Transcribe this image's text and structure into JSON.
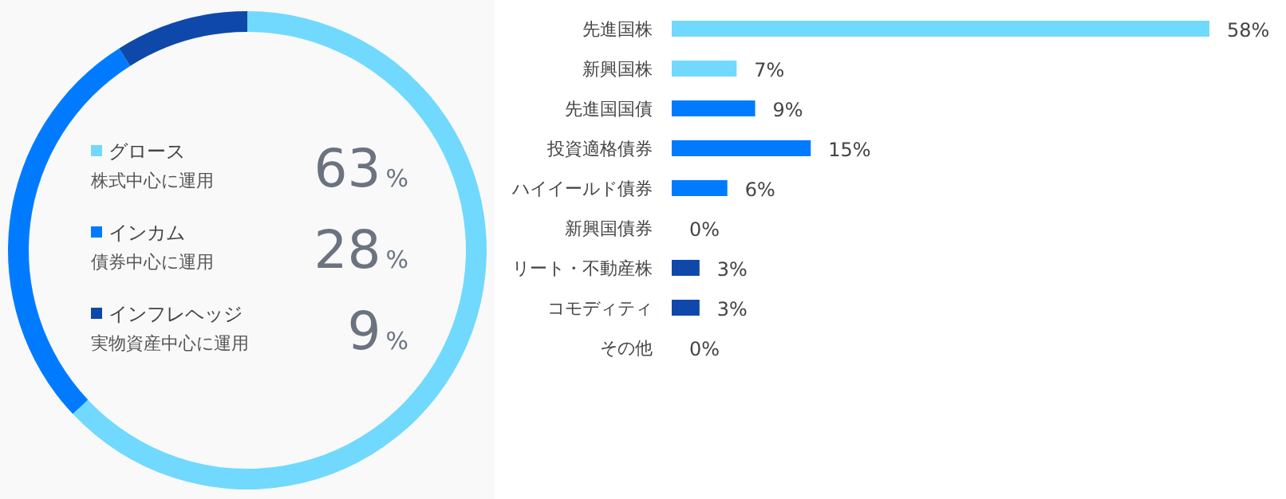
{
  "chart_data": [
    {
      "type": "donut",
      "categories": [
        "グロース",
        "インカム",
        "インフレヘッジ"
      ],
      "values": [
        63,
        28,
        9
      ],
      "colors": [
        "#70d9fd",
        "#007bff",
        "#0e48ab"
      ],
      "value_labels": [
        "63%",
        "28%",
        "9%"
      ],
      "annotations": [
        "株式中心に運用",
        "債券中心に運用",
        "実物資産中心に運用"
      ],
      "legend": "center"
    },
    {
      "type": "bar",
      "orientation": "horizontal",
      "categories": [
        "先進国株",
        "新興国株",
        "先進国国債",
        "投資適格債券",
        "ハイイールド債券",
        "新興国債券",
        "リート・不動産株",
        "コモディティ",
        "その他"
      ],
      "values": [
        58,
        7,
        9,
        15,
        6,
        0,
        3,
        3,
        0
      ],
      "colors": [
        "#70d9fd",
        "#70d9fd",
        "#007bff",
        "#007bff",
        "#007bff",
        "#007bff",
        "#0e48ab",
        "#0e48ab",
        "#0e48ab"
      ],
      "value_labels": [
        "58%",
        "7%",
        "9%",
        "15%",
        "6%",
        "0%",
        "3%",
        "3%",
        "0%"
      ]
    }
  ]
}
